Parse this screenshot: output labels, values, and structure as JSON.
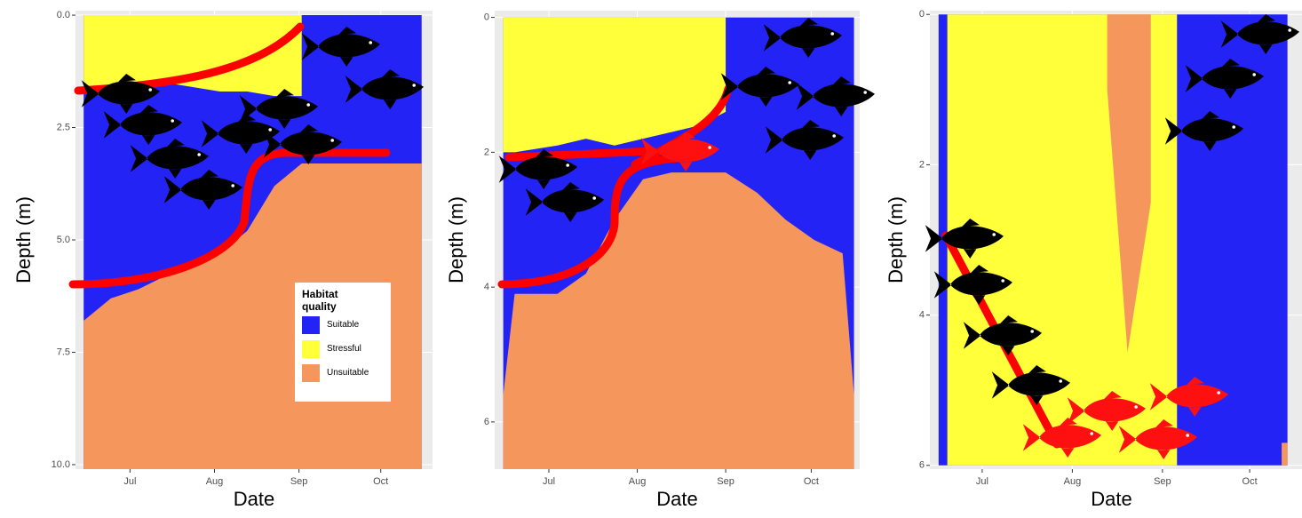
{
  "chart_data": [
    {
      "type": "band",
      "x_label": "Date",
      "y_label": "Depth (m)",
      "y_reversed": true,
      "grid": true,
      "xlim": [
        162,
        293
      ],
      "ylim": [
        -0.1,
        10.1
      ],
      "xticks": [
        {
          "value": 182,
          "label": "Jul"
        },
        {
          "value": 213,
          "label": "Aug"
        },
        {
          "value": 244,
          "label": "Sep"
        },
        {
          "value": 274,
          "label": "Oct"
        }
      ],
      "yticks": [
        {
          "value": 0,
          "label": "0.0"
        },
        2.5,
        {
          "value": 5,
          "label": "5.0"
        },
        7.5,
        {
          "value": 10,
          "label": "10.0"
        }
      ],
      "legend": {
        "title": "Habitat quality",
        "position": "bottom-right"
      },
      "x": [
        165,
        175,
        185,
        195,
        205,
        215,
        225,
        235,
        245,
        246,
        255,
        265,
        275,
        289
      ],
      "series": [
        {
          "name": "Suitable",
          "color": "#2323f5",
          "top": [
            0,
            0,
            0,
            0,
            0,
            0,
            0,
            0,
            0,
            0,
            0,
            0,
            0,
            0
          ],
          "bottom": [
            10.1,
            10.1,
            10.1,
            10.1,
            10.1,
            10.1,
            10.1,
            10.1,
            10.1,
            10.1,
            10.1,
            10.1,
            10.1,
            10.1
          ]
        },
        {
          "name": "Stressful",
          "color": "#ffff3a",
          "top": [
            0,
            0,
            0,
            0,
            0,
            0,
            0,
            0,
            0,
            null,
            null,
            null,
            null,
            null
          ],
          "bottom": [
            1.7,
            1.6,
            1.6,
            1.5,
            1.6,
            1.7,
            1.7,
            1.8,
            1.8,
            null,
            null,
            null,
            null,
            null
          ]
        },
        {
          "name": "Unsuitable",
          "color": "#f5975c",
          "top": [
            6.8,
            6.3,
            6.1,
            5.8,
            5.6,
            5.3,
            4.8,
            3.8,
            3.3,
            3.3,
            3.3,
            3.3,
            3.3,
            3.3
          ],
          "bottom": [
            10.1,
            10.1,
            10.1,
            10.1,
            10.1,
            10.1,
            10.1,
            10.1,
            10.1,
            10.1,
            10.1,
            10.1,
            10.1,
            10.1
          ]
        }
      ]
    },
    {
      "type": "band",
      "x_label": "Date",
      "y_label": "Depth (m)",
      "y_reversed": true,
      "grid": true,
      "xlim": [
        163,
        291
      ],
      "ylim": [
        -0.1,
        6.7
      ],
      "xticks": [
        {
          "value": 182,
          "label": "Jul"
        },
        {
          "value": 213,
          "label": "Aug"
        },
        {
          "value": 244,
          "label": "Sep"
        },
        {
          "value": 274,
          "label": "Oct"
        }
      ],
      "yticks": [
        0,
        2,
        4,
        6
      ],
      "legend": false,
      "x": [
        166,
        170,
        185,
        195,
        205,
        215,
        225,
        235,
        244,
        255,
        265,
        275,
        285,
        289
      ],
      "series": [
        {
          "name": "Suitable",
          "color": "#2323f5",
          "top": [
            0,
            0,
            0,
            0,
            0,
            0,
            0,
            0,
            0,
            0,
            0,
            0,
            0,
            0
          ],
          "bottom": [
            6.7,
            6.7,
            6.7,
            6.7,
            6.7,
            6.7,
            6.7,
            6.7,
            6.7,
            6.7,
            6.7,
            6.7,
            6.7,
            6.7
          ]
        },
        {
          "name": "Stressful",
          "color": "#ffff3a",
          "top": [
            0,
            0,
            0,
            0,
            0,
            0,
            0,
            0,
            0,
            null,
            null,
            null,
            null,
            null
          ],
          "bottom": [
            2.0,
            2.0,
            1.9,
            1.8,
            1.9,
            1.8,
            1.7,
            1.6,
            1.4,
            null,
            null,
            null,
            null,
            null
          ]
        },
        {
          "name": "Unsuitable",
          "color": "#f5975c",
          "top": [
            5.6,
            4.1,
            4.1,
            3.8,
            3.0,
            2.4,
            2.3,
            2.3,
            2.3,
            2.6,
            3.0,
            3.3,
            3.5,
            5.6
          ],
          "bottom": [
            6.7,
            6.7,
            6.7,
            6.7,
            6.7,
            6.7,
            6.7,
            6.7,
            6.7,
            6.7,
            6.7,
            6.7,
            6.7,
            6.7
          ]
        }
      ]
    },
    {
      "type": "band",
      "x_label": "Date",
      "y_label": "Depth (m)",
      "y_reversed": true,
      "grid": true,
      "xlim": [
        164,
        292
      ],
      "ylim": [
        -0.05,
        6.05
      ],
      "xticks": [
        {
          "value": 182,
          "label": "Jul"
        },
        {
          "value": 213,
          "label": "Aug"
        },
        {
          "value": 244,
          "label": "Sep"
        },
        {
          "value": 274,
          "label": "Oct"
        }
      ],
      "yticks": [
        0,
        2,
        4,
        6
      ],
      "legend": false,
      "x": [
        167,
        170,
        185,
        200,
        215,
        225,
        232,
        240,
        249,
        250,
        270,
        285,
        287
      ],
      "series": [
        {
          "name": "Suitable",
          "color": "#2323f5",
          "top": [
            0,
            0,
            0,
            0,
            0,
            0,
            0,
            0,
            0,
            0,
            0,
            0,
            0
          ],
          "bottom": [
            6,
            6,
            6,
            6,
            6,
            6,
            6,
            6,
            6,
            6,
            6,
            6,
            6
          ]
        },
        {
          "name": "Stressful",
          "color": "#ffff3a",
          "top": [
            null,
            0,
            0,
            0,
            0,
            0,
            0,
            0,
            0,
            null,
            null,
            null,
            null
          ],
          "bottom": [
            null,
            6,
            6,
            6,
            6,
            6,
            6,
            6,
            6,
            null,
            null,
            null,
            null
          ]
        },
        {
          "name": "Unsuitable",
          "color": "#f5975c",
          "top": [
            null,
            null,
            null,
            null,
            null,
            0,
            0,
            0,
            null,
            null,
            null,
            5.7,
            5.7
          ],
          "bottom": [
            null,
            null,
            null,
            null,
            null,
            1.0,
            4.5,
            2.5,
            null,
            null,
            null,
            6,
            6
          ]
        }
      ]
    }
  ]
}
